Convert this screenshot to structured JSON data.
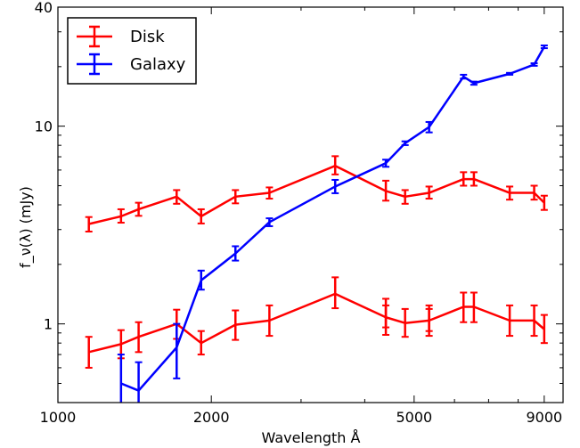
{
  "chart_data": {
    "type": "line",
    "title": "",
    "xlabel": "Wavelength Å",
    "ylabel": "f_ν(λ) (mJy)",
    "xscale": "log",
    "yscale": "log",
    "xlim": [
      1000,
      9800
    ],
    "ylim": [
      0.4,
      40
    ],
    "x_ticks": [
      1000,
      2000,
      5000,
      9000
    ],
    "x_tick_labels": [
      "1000",
      "2000",
      "5000",
      "9000"
    ],
    "y_ticks": [
      1,
      10,
      40
    ],
    "y_tick_labels": [
      "1",
      "10",
      "40"
    ],
    "grid": false,
    "legend": {
      "placement": "top-left"
    },
    "series": [
      {
        "name": "Disk",
        "color": "#ff0000",
        "points": [
          {
            "x": 1150,
            "y": 3.2,
            "err": [
              0.27,
              0.27
            ]
          },
          {
            "x": 1330,
            "y": 3.5,
            "err": [
              0.25,
              0.3
            ]
          },
          {
            "x": 1440,
            "y": 3.8,
            "err": [
              0.28,
              0.3
            ]
          },
          {
            "x": 1710,
            "y": 4.4,
            "err": [
              0.35,
              0.35
            ]
          },
          {
            "x": 1910,
            "y": 3.5,
            "err": [
              0.28,
              0.3
            ]
          },
          {
            "x": 2230,
            "y": 4.4,
            "err": [
              0.33,
              0.35
            ]
          },
          {
            "x": 2600,
            "y": 4.6,
            "err": [
              0.3,
              0.3
            ]
          },
          {
            "x": 3500,
            "y": 6.3,
            "err": [
              0.6,
              0.75
            ]
          },
          {
            "x": 4400,
            "y": 4.7,
            "err": [
              0.5,
              0.6
            ]
          },
          {
            "x": 4800,
            "y": 4.4,
            "err": [
              0.35,
              0.35
            ]
          },
          {
            "x": 5350,
            "y": 4.6,
            "err": [
              0.3,
              0.35
            ]
          },
          {
            "x": 6250,
            "y": 5.4,
            "err": [
              0.4,
              0.45
            ]
          },
          {
            "x": 6550,
            "y": 5.4,
            "err": [
              0.4,
              0.45
            ]
          },
          {
            "x": 7700,
            "y": 4.6,
            "err": [
              0.35,
              0.35
            ]
          },
          {
            "x": 8600,
            "y": 4.6,
            "err": [
              0.35,
              0.4
            ]
          },
          {
            "x": 9000,
            "y": 4.1,
            "err": [
              0.33,
              0.35
            ]
          }
        ]
      },
      {
        "name": "Disk",
        "color": "#ff0000",
        "legend": false,
        "points": [
          {
            "x": 1150,
            "y": 0.72,
            "err": [
              0.12,
              0.14
            ]
          },
          {
            "x": 1330,
            "y": 0.79,
            "err": [
              0.12,
              0.14
            ]
          },
          {
            "x": 1440,
            "y": 0.86,
            "err": [
              0.14,
              0.16
            ]
          },
          {
            "x": 1710,
            "y": 1.0,
            "err": [
              0.16,
              0.18
            ]
          },
          {
            "x": 1910,
            "y": 0.8,
            "err": [
              0.1,
              0.12
            ]
          },
          {
            "x": 2230,
            "y": 0.99,
            "err": [
              0.16,
              0.18
            ]
          },
          {
            "x": 2600,
            "y": 1.04,
            "err": [
              0.17,
              0.2
            ]
          },
          {
            "x": 3500,
            "y": 1.42,
            "err": [
              0.22,
              0.3
            ]
          },
          {
            "x": 4400,
            "y": 1.08,
            "err": [
              0.2,
              0.26
            ]
          },
          {
            "x": 4400,
            "y": 1.08,
            "err": [
              0.12,
              0.16
            ]
          },
          {
            "x": 4800,
            "y": 1.01,
            "err": [
              0.15,
              0.18
            ]
          },
          {
            "x": 5350,
            "y": 1.04,
            "err": [
              0.17,
              0.2
            ]
          },
          {
            "x": 5350,
            "y": 1.04,
            "err": [
              0.12,
              0.15
            ]
          },
          {
            "x": 6250,
            "y": 1.22,
            "err": [
              0.2,
              0.22
            ]
          },
          {
            "x": 6550,
            "y": 1.22,
            "err": [
              0.2,
              0.22
            ]
          },
          {
            "x": 7700,
            "y": 1.04,
            "err": [
              0.17,
              0.2
            ]
          },
          {
            "x": 8600,
            "y": 1.04,
            "err": [
              0.17,
              0.2
            ]
          },
          {
            "x": 9000,
            "y": 0.94,
            "err": [
              0.14,
              0.17
            ]
          }
        ]
      },
      {
        "name": "Galaxy",
        "color": "#0000ff",
        "points": [
          {
            "x": 1330,
            "y": 0.5,
            "err": [
              0.22,
              0.2
            ]
          },
          {
            "x": 1440,
            "y": 0.46,
            "err": [
              0.18,
              0.18
            ]
          },
          {
            "x": 1710,
            "y": 0.76,
            "err": [
              0.23,
              0.24
            ]
          },
          {
            "x": 1910,
            "y": 1.66,
            "err": [
              0.17,
              0.2
            ]
          },
          {
            "x": 2230,
            "y": 2.27,
            "err": [
              0.18,
              0.2
            ]
          },
          {
            "x": 2600,
            "y": 3.27,
            "err": [
              0.15,
              0.15
            ]
          },
          {
            "x": 3500,
            "y": 4.95,
            "err": [
              0.37,
              0.4
            ]
          },
          {
            "x": 4400,
            "y": 6.5,
            "err": [
              0.27,
              0.27
            ]
          },
          {
            "x": 4800,
            "y": 8.2,
            "err": [
              0.18,
              0.18
            ]
          },
          {
            "x": 5350,
            "y": 9.9,
            "err": [
              0.6,
              0.6
            ]
          },
          {
            "x": 6250,
            "y": 17.8,
            "err": [
              0.4,
              0.4
            ]
          },
          {
            "x": 6550,
            "y": 16.5,
            "err": [
              0.3,
              0.3
            ]
          },
          {
            "x": 7700,
            "y": 18.4,
            "err": [
              0.2,
              0.2
            ]
          },
          {
            "x": 8600,
            "y": 20.5,
            "err": [
              0.3,
              0.3
            ]
          },
          {
            "x": 9000,
            "y": 25.2,
            "err": [
              0.4,
              0.4
            ]
          }
        ]
      }
    ]
  }
}
